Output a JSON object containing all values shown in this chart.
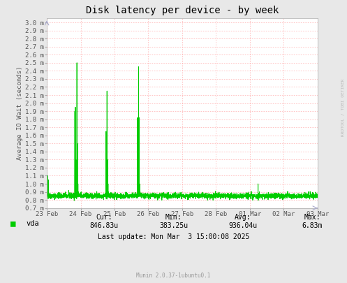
{
  "title": "Disk latency per device - by week",
  "ylabel": "Average IO Wait (seconds)",
  "bg_color": "#e8e8e8",
  "plot_bg_color": "#ffffff",
  "line_color": "#00cc00",
  "grid_color": "#ffaaaa",
  "ytick_labels": [
    "0.7 m",
    "0.8 m",
    "0.9 m",
    "1.0 m",
    "1.1 m",
    "1.2 m",
    "1.3 m",
    "1.4 m",
    "1.5 m",
    "1.6 m",
    "1.7 m",
    "1.8 m",
    "1.9 m",
    "2.0 m",
    "2.1 m",
    "2.2 m",
    "2.3 m",
    "2.4 m",
    "2.5 m",
    "2.6 m",
    "2.7 m",
    "2.8 m",
    "2.9 m",
    "3.0 m"
  ],
  "ytick_values": [
    0.7,
    0.8,
    0.9,
    1.0,
    1.1,
    1.2,
    1.3,
    1.4,
    1.5,
    1.6,
    1.7,
    1.8,
    1.9,
    2.0,
    2.1,
    2.2,
    2.3,
    2.4,
    2.5,
    2.6,
    2.7,
    2.8,
    2.9,
    3.0
  ],
  "ymin": 0.7,
  "ymax": 3.05,
  "xtick_labels": [
    "23 Feb",
    "24 Feb",
    "25 Feb",
    "26 Feb",
    "27 Feb",
    "28 Feb",
    "01 Mar",
    "02 Mar",
    "03 Mar"
  ],
  "legend_label": "vda",
  "legend_color": "#00cc00",
  "cur_label": "Cur:",
  "cur": "846.83u",
  "min_label": "Min:",
  "min": "383.25u",
  "avg_label": "Avg:",
  "avg": "936.04u",
  "max_label": "Max:",
  "max": "6.83m",
  "last_update": "Last update: Mon Mar  3 15:00:08 2025",
  "munin_version": "Munin 2.0.37-1ubuntu0.1",
  "watermark": "RRDTOOL / TOBI OETIKER",
  "title_fontsize": 10,
  "axis_fontsize": 6.5,
  "tick_fontsize": 6.5,
  "legend_fontsize": 7.5,
  "stats_fontsize": 7,
  "watermark_fontsize": 4.5
}
